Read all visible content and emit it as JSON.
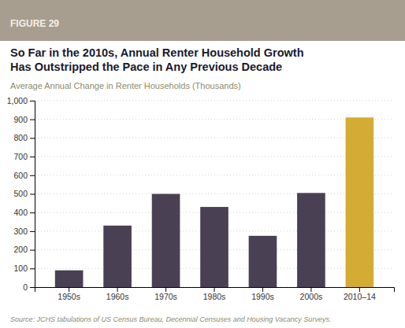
{
  "chart_data": {
    "type": "bar",
    "figure_label": "FIGURE 29",
    "title": "So Far in the 2010s, Annual Renter Household Growth\nHas Outstripped the Pace in Any Previous Decade",
    "subtitle": "Average Annual Change in Renter Households (Thousands)",
    "source": "Source: JCHS tabulations of US Census Bureau, Decennial Censuses and Housing Vacancy Surveys.",
    "categories": [
      "1950s",
      "1960s",
      "1970s",
      "1980s",
      "1990s",
      "2000s",
      "2010–14"
    ],
    "values": [
      90,
      330,
      500,
      430,
      275,
      505,
      910
    ],
    "colors": [
      "#4a4053",
      "#4a4053",
      "#4a4053",
      "#4a4053",
      "#4a4053",
      "#4a4053",
      "#d4ac34"
    ],
    "ylim": [
      0,
      1000
    ],
    "yticks": [
      0,
      100,
      200,
      300,
      400,
      500,
      600,
      700,
      800,
      900,
      {
        "value": 1000,
        "label": "1,000"
      }
    ],
    "grid": true
  }
}
